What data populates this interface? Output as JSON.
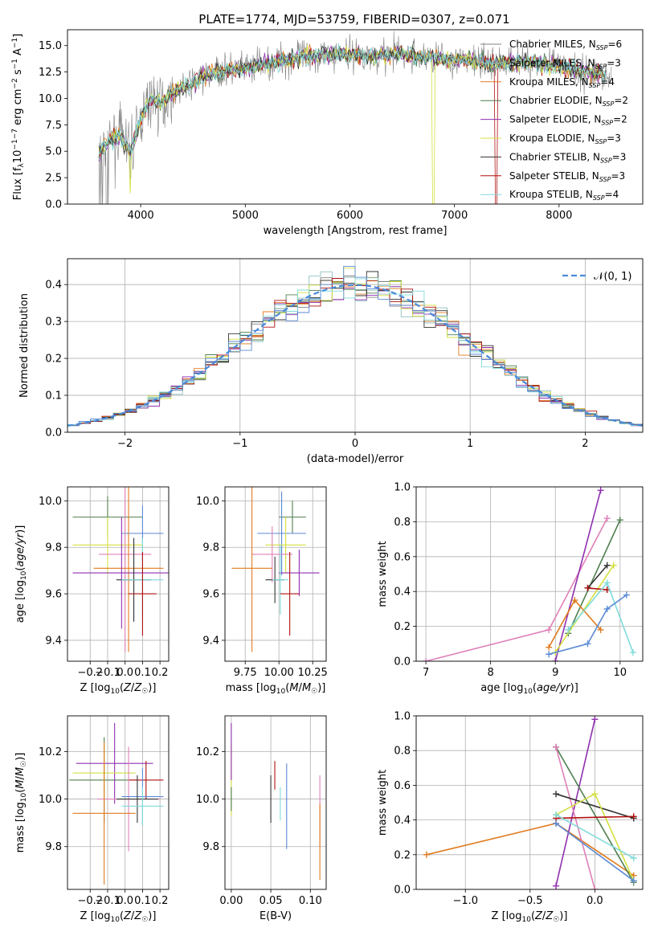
{
  "figure": {
    "title": "PLATE=1774, MJD=53759, FIBERID=0307, z=0.071"
  },
  "colors": {
    "Chabrier MILES": "#808080",
    "Salpeter MILES": "#8fbfbf",
    "Kroupa MILES": "#e07b20",
    "Chabrier ELODIE": "#4f7f4f",
    "Salpeter ELODIE": "#9030b0",
    "Kroupa ELODIE": "#d4e040",
    "Chabrier STELIB": "#333333",
    "Salpeter STELIB": "#b01010",
    "Kroupa STELIB": "#80dada",
    "extra_pink": "#e080b8",
    "extra_blue": "#5b8ad6"
  },
  "chart_data": [
    {
      "id": "spectrum",
      "type": "line",
      "title": "PLATE=1774, MJD=53759, FIBERID=0307, z=0.071",
      "xlabel": "wavelength [Angstrom, rest frame]",
      "ylabel": "Flux [fλ10⁻¹⁷ erg cm⁻² s⁻¹ A⁻¹]",
      "xlim": [
        3300,
        8800
      ],
      "ylim": [
        0,
        16.5
      ],
      "xticks": [
        4000,
        5000,
        6000,
        7000,
        8000
      ],
      "yticks": [
        0.0,
        2.5,
        5.0,
        7.5,
        10.0,
        12.5,
        15.0
      ],
      "legend": "top-right",
      "grid": false,
      "continuum": {
        "x": [
          3600,
          3700,
          3800,
          3900,
          4000,
          4100,
          4200,
          4300,
          4500,
          4700,
          5000,
          5300,
          5600,
          5900,
          6200,
          6500,
          6800,
          7100,
          7400,
          7700,
          8000,
          8300,
          8500
        ],
        "y": [
          5.0,
          6.0,
          6.5,
          5.0,
          8.0,
          10.0,
          9.5,
          10.5,
          11.5,
          12.5,
          12.8,
          13.5,
          14.0,
          14.3,
          14.0,
          14.2,
          13.8,
          13.6,
          13.3,
          13.5,
          13.0,
          12.5,
          12.0
        ]
      },
      "series": [
        {
          "name": "Chabrier MILES, N_SSP=6",
          "label_main": "Chabrier MILES, N",
          "label_sub": "SSP",
          "label_tail": "=6"
        },
        {
          "name": "Salpeter MILES, N_SSP=3",
          "label_main": "Salpeter MILES, N",
          "label_sub": "SSP",
          "label_tail": "=3"
        },
        {
          "name": "Kroupa MILES, N_SSP=4",
          "label_main": "Kroupa MILES, N",
          "label_sub": "SSP",
          "label_tail": "=4"
        },
        {
          "name": "Chabrier ELODIE, N_SSP=2",
          "label_main": "Chabrier ELODIE, N",
          "label_sub": "SSP",
          "label_tail": "=2"
        },
        {
          "name": "Salpeter ELODIE, N_SSP=2",
          "label_main": "Salpeter ELODIE, N",
          "label_sub": "SSP",
          "label_tail": "=2"
        },
        {
          "name": "Kroupa ELODIE, N_SSP=3",
          "label_main": "Kroupa ELODIE, N",
          "label_sub": "SSP",
          "label_tail": "=3"
        },
        {
          "name": "Chabrier STELIB, N_SSP=3",
          "label_main": "Chabrier STELIB, N",
          "label_sub": "SSP",
          "label_tail": "=3"
        },
        {
          "name": "Salpeter STELIB, N_SSP=3",
          "label_main": "Salpeter STELIB, N",
          "label_sub": "SSP",
          "label_tail": "=3"
        },
        {
          "name": "Kroupa STELIB, N_SSP=4",
          "label_main": "Kroupa STELIB, N",
          "label_sub": "SSP",
          "label_tail": "=4"
        }
      ]
    },
    {
      "id": "residuals",
      "type": "line",
      "xlabel": "(data-model)/error",
      "ylabel": "Normed distribution",
      "xlim": [
        -2.5,
        2.5
      ],
      "ylim": [
        0,
        0.47
      ],
      "xticks": [
        -2,
        -1,
        0,
        1,
        2
      ],
      "yticks": [
        0.0,
        0.1,
        0.2,
        0.3,
        0.4
      ],
      "grid": true,
      "legend": "top-right",
      "reference": {
        "name": "𝒩(0, 1)"
      }
    },
    {
      "id": "age_vs_Z",
      "type": "scatter",
      "xlabel": "Z [log₁₀(Z/Z☉)]",
      "ylabel": "age  [log₁₀(age/yr)]",
      "xlim": [
        -0.33,
        0.25
      ],
      "ylim": [
        9.31,
        10.06
      ],
      "xticks": [
        -0.2,
        -0.1,
        0.0,
        0.1,
        0.2
      ],
      "yticks": [
        9.4,
        9.6,
        9.8,
        10.0
      ],
      "grid": true,
      "points": [
        {
          "x": -0.1,
          "y": 9.93,
          "xerr": 0.2,
          "yerr": 0.09,
          "color": "#4f7f4f"
        },
        {
          "x": 0.1,
          "y": 9.86,
          "xerr": 0.12,
          "yerr": 0.12,
          "color": "#5b8ad6"
        },
        {
          "x": -0.1,
          "y": 9.81,
          "xerr": 0.2,
          "yerr": 0.12,
          "color": "#d4e040"
        },
        {
          "x": 0.0,
          "y": 9.77,
          "xerr": 0.15,
          "yerr": 0.42,
          "color": "#e080b8"
        },
        {
          "x": 0.02,
          "y": 9.71,
          "xerr": 0.2,
          "yerr": 0.36,
          "color": "#e07b20"
        },
        {
          "x": -0.02,
          "y": 9.69,
          "xerr": 0.28,
          "yerr": 0.24,
          "color": "#9030b0"
        },
        {
          "x": 0.05,
          "y": 9.66,
          "xerr": 0.1,
          "yerr": 0.18,
          "color": "#333333"
        },
        {
          "x": 0.1,
          "y": 9.66,
          "xerr": 0.12,
          "yerr": 0.18,
          "color": "#80dada"
        },
        {
          "x": 0.1,
          "y": 9.6,
          "xerr": 0.08,
          "yerr": 0.18,
          "color": "#b01010"
        }
      ]
    },
    {
      "id": "age_vs_mass",
      "type": "scatter",
      "xlabel": "mass [log₁₀(M/M☉)]",
      "ylabel": "",
      "xlim": [
        9.6,
        10.35
      ],
      "ylim": [
        9.31,
        10.06
      ],
      "xticks": [
        9.75,
        10.0,
        10.25
      ],
      "yticks": [
        9.4,
        9.6,
        9.8,
        10.0
      ],
      "grid": true,
      "points": [
        {
          "x": 10.1,
          "y": 9.93,
          "xerr": 0.1,
          "yerr": 0.07,
          "color": "#4f7f4f"
        },
        {
          "x": 10.02,
          "y": 9.86,
          "xerr": 0.18,
          "yerr": 0.18,
          "color": "#5b8ad6"
        },
        {
          "x": 10.05,
          "y": 9.81,
          "xerr": 0.15,
          "yerr": 0.12,
          "color": "#d4e040"
        },
        {
          "x": 9.95,
          "y": 9.77,
          "xerr": 0.15,
          "yerr": 0.12,
          "color": "#e080b8"
        },
        {
          "x": 9.8,
          "y": 9.71,
          "xerr": 0.15,
          "yerr": 0.36,
          "color": "#e07b20"
        },
        {
          "x": 10.15,
          "y": 9.69,
          "xerr": 0.15,
          "yerr": 0.1,
          "color": "#9030b0"
        },
        {
          "x": 9.97,
          "y": 9.66,
          "xerr": 0.07,
          "yerr": 0.1,
          "color": "#333333"
        },
        {
          "x": 10.01,
          "y": 9.66,
          "xerr": 0.06,
          "yerr": 0.15,
          "color": "#80dada"
        },
        {
          "x": 10.08,
          "y": 9.6,
          "xerr": 0.07,
          "yerr": 0.18,
          "color": "#b01010"
        }
      ]
    },
    {
      "id": "weight_vs_age",
      "type": "line",
      "xlabel": "age  [log₁₀(age/yr)]",
      "ylabel": "mass weight",
      "xlim": [
        6.85,
        10.35
      ],
      "ylim": [
        0,
        1.0
      ],
      "xticks": [
        7,
        8,
        9,
        10
      ],
      "yticks": [
        0.0,
        0.2,
        0.4,
        0.6,
        0.8,
        1.0
      ],
      "grid": true,
      "series": [
        {
          "color": "#e080b8",
          "x": [
            7.0,
            8.9,
            9.8
          ],
          "y": [
            0.0,
            0.18,
            0.82
          ]
        },
        {
          "color": "#9030b0",
          "x": [
            9.0,
            9.7
          ],
          "y": [
            0.0,
            0.98
          ]
        },
        {
          "color": "#4f7f4f",
          "x": [
            9.2,
            10.0
          ],
          "y": [
            0.16,
            0.81
          ]
        },
        {
          "color": "#333333",
          "x": [
            9.5,
            9.8
          ],
          "y": [
            0.42,
            0.55
          ]
        },
        {
          "color": "#d4e040",
          "x": [
            9.0,
            9.9
          ],
          "y": [
            0.05,
            0.55
          ]
        },
        {
          "color": "#b01010",
          "x": [
            9.5,
            9.8
          ],
          "y": [
            0.42,
            0.41
          ]
        },
        {
          "color": "#e07b20",
          "x": [
            8.9,
            9.3,
            9.7
          ],
          "y": [
            0.08,
            0.35,
            0.18
          ]
        },
        {
          "color": "#80dada",
          "x": [
            9.2,
            9.8,
            10.2
          ],
          "y": [
            0.18,
            0.45,
            0.05
          ]
        },
        {
          "color": "#5b8ad6",
          "x": [
            8.9,
            9.5,
            9.8,
            10.1
          ],
          "y": [
            0.04,
            0.1,
            0.3,
            0.38
          ]
        }
      ]
    },
    {
      "id": "mass_vs_Z",
      "type": "scatter",
      "xlabel": "Z [log₁₀(Z/Z☉)]",
      "ylabel": "mass [log₁₀(M/M☉)]",
      "xlim": [
        -0.33,
        0.25
      ],
      "ylim": [
        9.62,
        10.35
      ],
      "xticks": [
        -0.2,
        -0.1,
        0.0,
        0.1,
        0.2
      ],
      "yticks": [
        9.8,
        10.0,
        10.2
      ],
      "grid": true,
      "points": [
        {
          "x": -0.12,
          "y": 10.08,
          "xerr": 0.2,
          "yerr": 0.18,
          "color": "#4f7f4f"
        },
        {
          "x": -0.06,
          "y": 10.15,
          "xerr": 0.22,
          "yerr": 0.17,
          "color": "#9030b0"
        },
        {
          "x": -0.12,
          "y": 10.11,
          "xerr": 0.18,
          "yerr": 0.12,
          "color": "#d4e040"
        },
        {
          "x": 0.12,
          "y": 10.08,
          "xerr": 0.1,
          "yerr": 0.08,
          "color": "#b01010"
        },
        {
          "x": 0.02,
          "y": 10.0,
          "xerr": 0.18,
          "yerr": 0.22,
          "color": "#e080b8"
        },
        {
          "x": 0.1,
          "y": 10.01,
          "xerr": 0.12,
          "yerr": 0.12,
          "color": "#5b8ad6"
        },
        {
          "x": 0.07,
          "y": 10.0,
          "xerr": 0.12,
          "yerr": 0.1,
          "color": "#333333"
        },
        {
          "x": 0.1,
          "y": 9.97,
          "xerr": 0.12,
          "yerr": 0.08,
          "color": "#80dada"
        },
        {
          "x": -0.12,
          "y": 9.94,
          "xerr": 0.18,
          "yerr": 0.3,
          "color": "#e07b20"
        }
      ]
    },
    {
      "id": "mass_vs_ebv",
      "type": "scatter",
      "xlabel": "E(B-V)",
      "ylabel": "",
      "xlim": [
        -0.008,
        0.12
      ],
      "ylim": [
        9.62,
        10.35
      ],
      "xticks": [
        0.0,
        0.05,
        0.1
      ],
      "yticks": [
        9.8,
        10.0,
        10.2
      ],
      "grid": true,
      "points": [
        {
          "x": 0.0,
          "y": 10.08,
          "yerr": 0.15,
          "color": "#d4e040"
        },
        {
          "x": 0.0,
          "y": 10.2,
          "yerr": 0.12,
          "color": "#9030b0"
        },
        {
          "x": 0.0,
          "y": 10.0,
          "yerr": 0.05,
          "color": "#4f7f4f"
        },
        {
          "x": 0.05,
          "y": 10.0,
          "yerr": 0.1,
          "color": "#333333"
        },
        {
          "x": 0.055,
          "y": 10.1,
          "yerr": 0.06,
          "color": "#b01010"
        },
        {
          "x": 0.062,
          "y": 9.98,
          "yerr": 0.07,
          "color": "#80dada"
        },
        {
          "x": 0.07,
          "y": 9.97,
          "yerr": 0.18,
          "color": "#5b8ad6"
        },
        {
          "x": 0.112,
          "y": 9.95,
          "yerr": 0.15,
          "color": "#e080b8"
        },
        {
          "x": 0.112,
          "y": 9.82,
          "yerr": 0.16,
          "color": "#e07b20"
        }
      ]
    },
    {
      "id": "weight_vs_Z",
      "type": "line",
      "xlabel": "Z [log₁₀(Z/Z☉)]",
      "ylabel": "mass weight",
      "xlim": [
        -1.38,
        0.37
      ],
      "ylim": [
        0,
        1.0
      ],
      "xticks": [
        -1.0,
        -0.5,
        0.0
      ],
      "yticks": [
        0.0,
        0.2,
        0.4,
        0.6,
        0.8,
        1.0
      ],
      "grid": true,
      "series": [
        {
          "color": "#e07b20",
          "x": [
            -1.3,
            -0.3,
            0.3
          ],
          "y": [
            0.2,
            0.38,
            0.08
          ]
        },
        {
          "color": "#9030b0",
          "x": [
            -0.3,
            0.0
          ],
          "y": [
            0.02,
            0.98
          ]
        },
        {
          "color": "#4f7f4f",
          "x": [
            -0.3,
            0.3
          ],
          "y": [
            0.82,
            0.04
          ]
        },
        {
          "color": "#e080b8",
          "x": [
            -0.3,
            0.0
          ],
          "y": [
            0.82,
            0.0
          ]
        },
        {
          "color": "#333333",
          "x": [
            -0.3,
            0.3
          ],
          "y": [
            0.55,
            0.41
          ]
        },
        {
          "color": "#d4e040",
          "x": [
            -0.3,
            0.0,
            0.3
          ],
          "y": [
            0.43,
            0.55,
            0.05
          ]
        },
        {
          "color": "#b01010",
          "x": [
            -0.3,
            0.3
          ],
          "y": [
            0.41,
            0.42
          ]
        },
        {
          "color": "#80dada",
          "x": [
            -0.3,
            0.3
          ],
          "y": [
            0.43,
            0.18
          ]
        },
        {
          "color": "#5b8ad6",
          "x": [
            -0.3,
            0.3
          ],
          "y": [
            0.38,
            0.05
          ]
        }
      ]
    }
  ]
}
